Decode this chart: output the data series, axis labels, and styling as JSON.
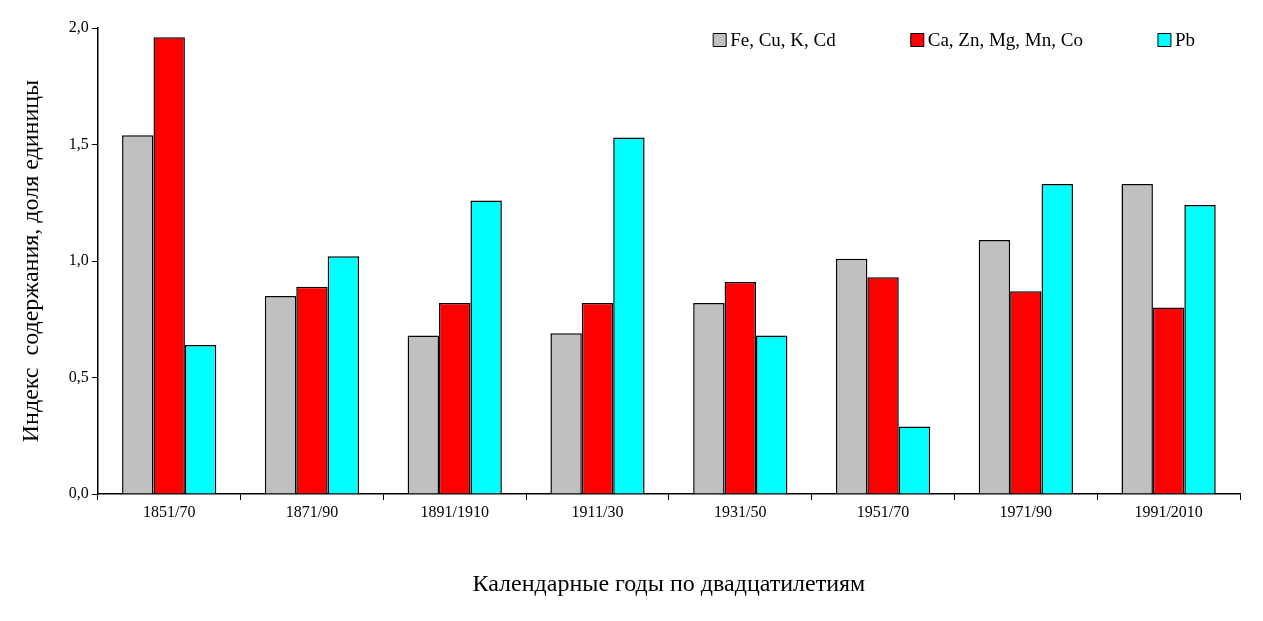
{
  "chart_data": {
    "type": "bar",
    "xlabel": "Календарные годы по двадцатилетиям",
    "ylabel": "Индекс  содержания, доля единицы",
    "categories": [
      "1851/70",
      "1871/90",
      "1891/1910",
      "1911/30",
      "1931/50",
      "1951/70",
      "1971/90",
      "1991/2010"
    ],
    "series": [
      {
        "name": "Fe, Cu, K, Cd",
        "color": "#c0c0c0",
        "values": [
          1.54,
          0.85,
          0.68,
          0.69,
          0.82,
          1.01,
          1.09,
          1.33
        ]
      },
      {
        "name": "Ca, Zn, Mg, Mn, Co",
        "color": "#ff0000",
        "values": [
          1.96,
          0.89,
          0.82,
          0.82,
          0.91,
          0.93,
          0.87,
          0.8
        ]
      },
      {
        "name": "Pb",
        "color": "#00ffff",
        "values": [
          0.64,
          1.02,
          1.26,
          1.53,
          0.68,
          0.29,
          1.33,
          1.24
        ]
      }
    ],
    "ylim": [
      0,
      2
    ],
    "yticks": [
      {
        "value": 0,
        "label": "0,0"
      },
      {
        "value": 0.5,
        "label": "0,5"
      },
      {
        "value": 1,
        "label": "1,0"
      },
      {
        "value": 1.5,
        "label": "1,5"
      },
      {
        "value": 2,
        "label": "2,0"
      }
    ],
    "grid": false,
    "legend": "top right"
  }
}
